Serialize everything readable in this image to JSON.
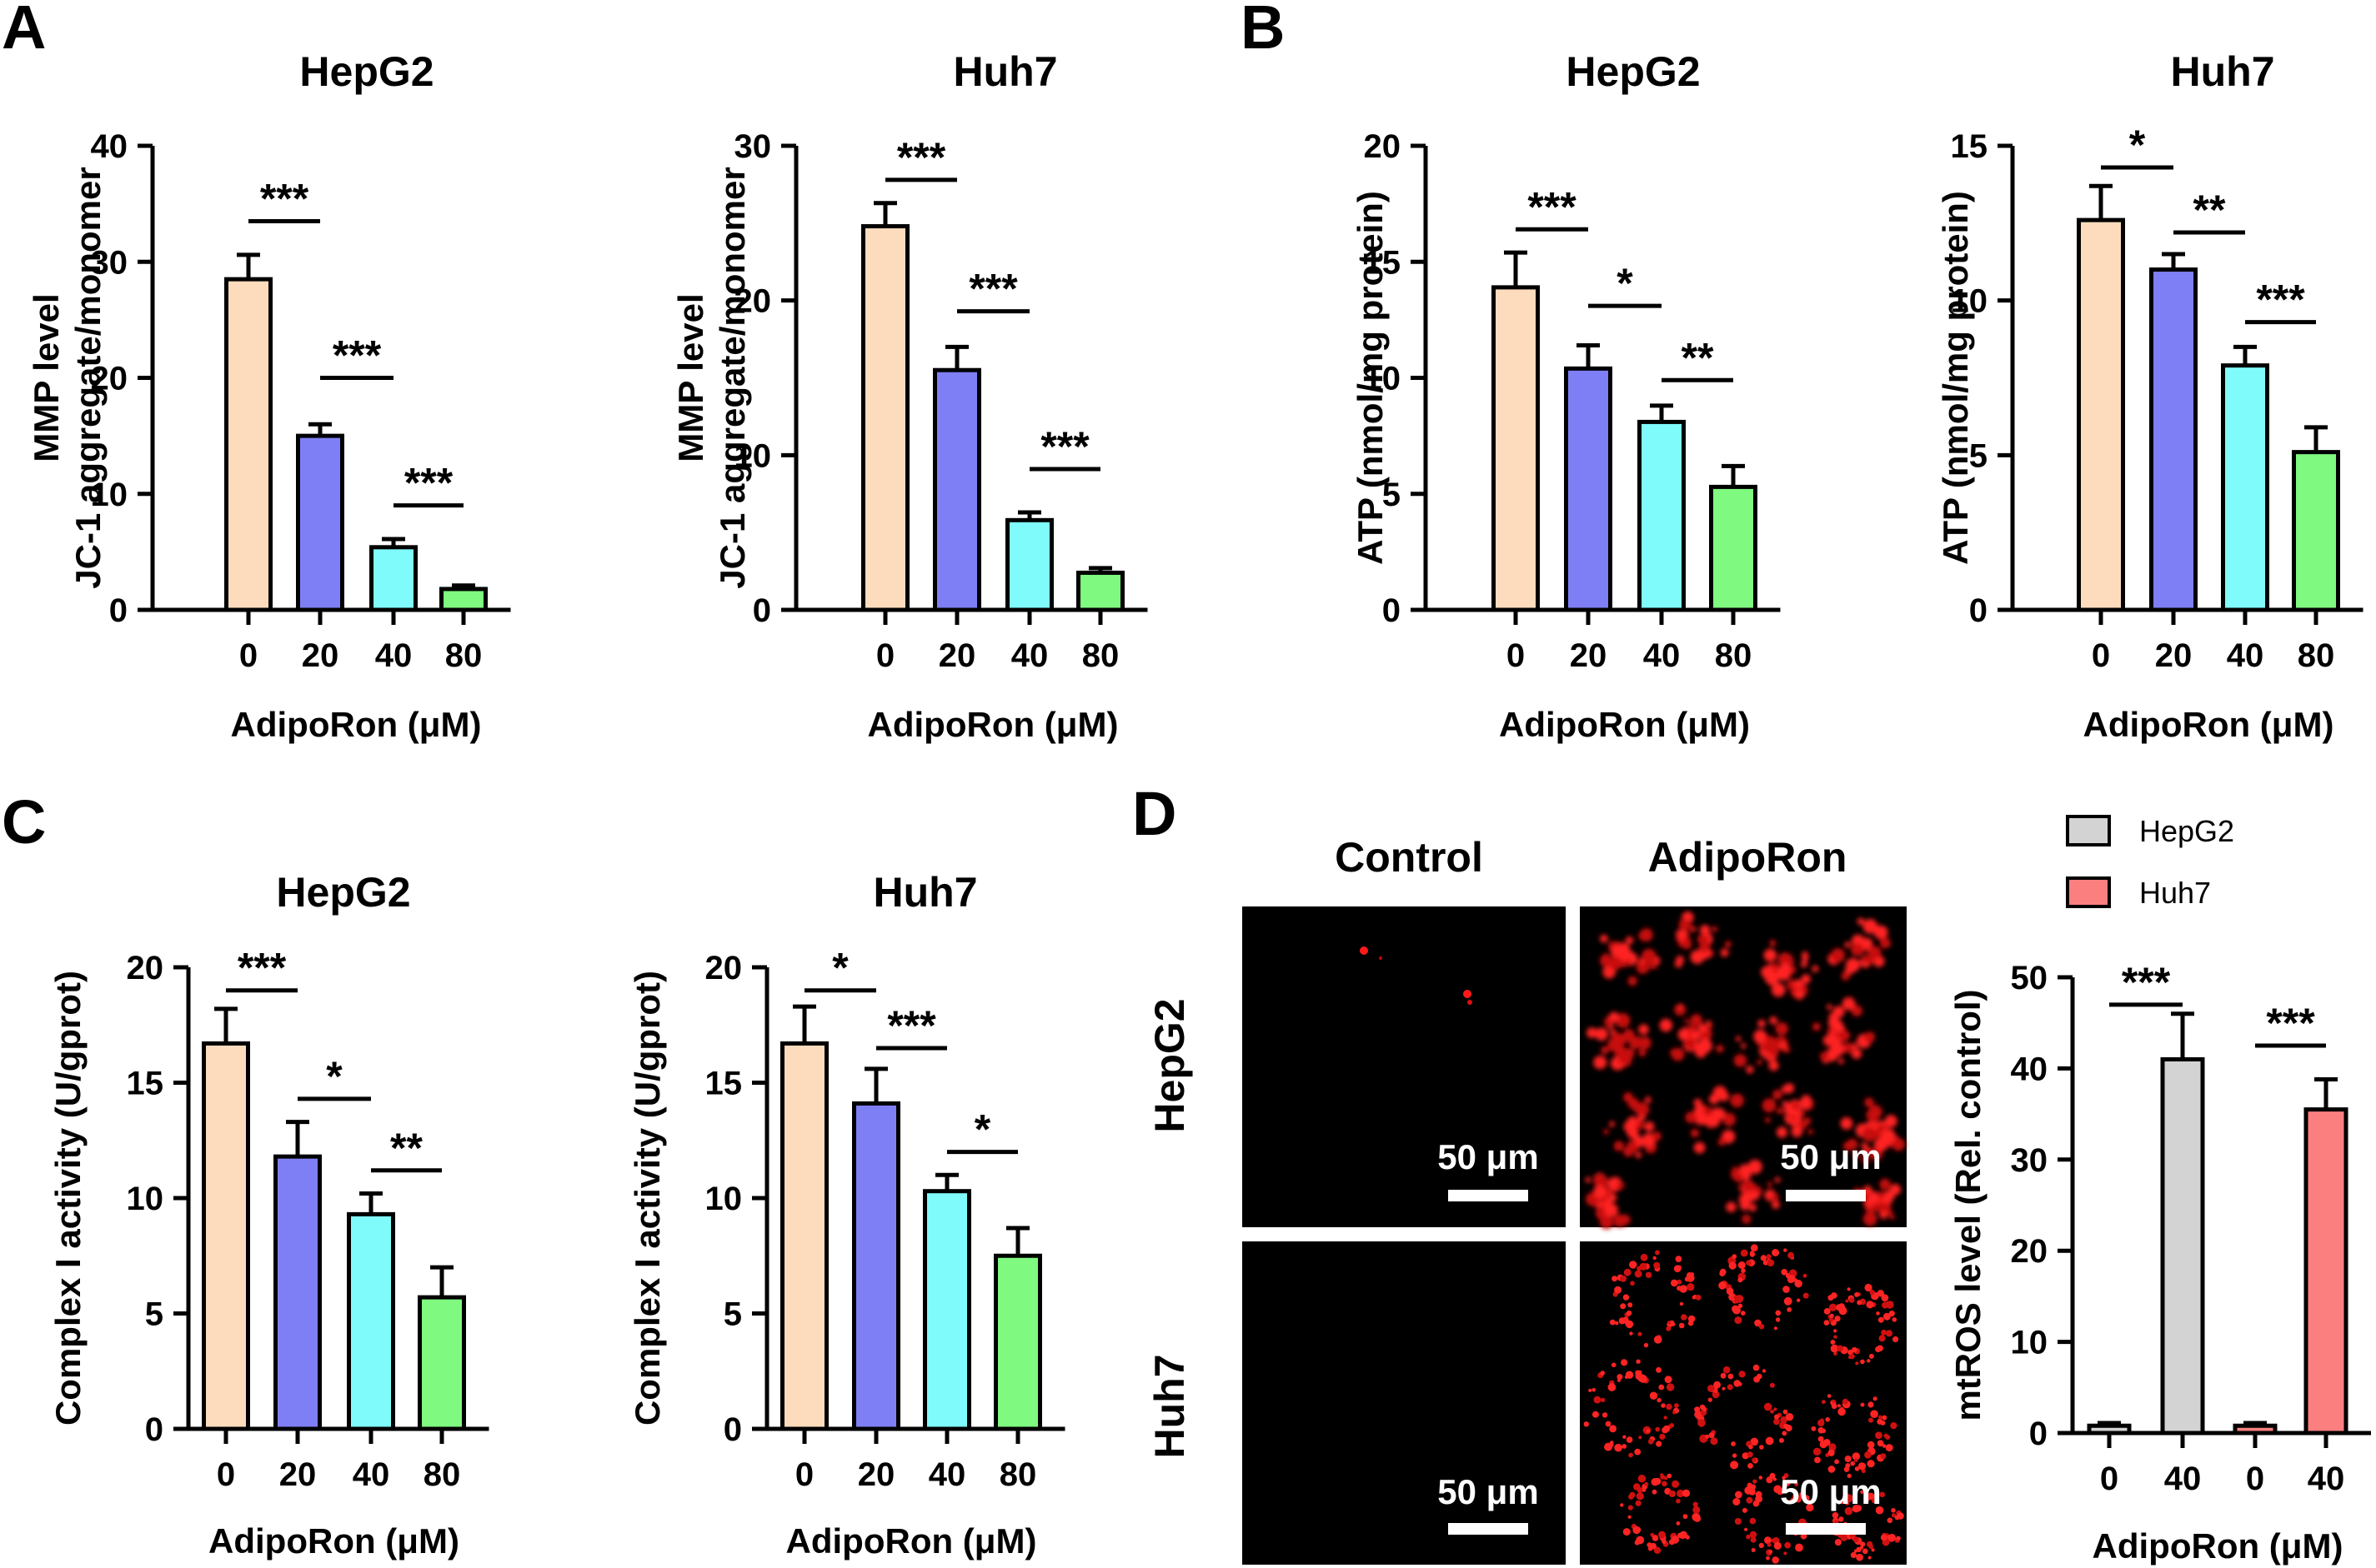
{
  "panels": {
    "A": "A",
    "B": "B",
    "C": "C",
    "D": "D"
  },
  "colors": {
    "c0": "#fcdcbd",
    "c20": "#7f7ff5",
    "c40": "#7ffbfb",
    "c80": "#7ff97f",
    "hepg2": "#d3d3d3",
    "huh7": "#fb7f7f",
    "stroke": "#000000"
  },
  "chart_data": [
    {
      "id": "A-HepG2",
      "type": "bar",
      "title": "HepG2",
      "ylabel": [
        "MMP level",
        "JC-1 aggregate/monomer"
      ],
      "xlabel": "AdipoRon (μM)",
      "categories": [
        "0",
        "20",
        "40",
        "80"
      ],
      "values": [
        28.5,
        15.0,
        5.4,
        1.8
      ],
      "errors": [
        2.1,
        1.0,
        0.7,
        0.3
      ],
      "ylim": [
        0,
        40
      ],
      "yticks": [
        "0",
        "10",
        "20",
        "30",
        "40"
      ],
      "sig": [
        {
          "from": 0,
          "to": 1,
          "y": 33.5,
          "label": "***"
        },
        {
          "from": 1,
          "to": 2,
          "y": 20,
          "label": "***"
        },
        {
          "from": 2,
          "to": 3,
          "y": 9,
          "label": "***"
        }
      ]
    },
    {
      "id": "A-Huh7",
      "type": "bar",
      "title": "Huh7",
      "ylabel": [
        "MMP level",
        "JC-1 aggregate/monomer"
      ],
      "xlabel": "AdipoRon (μM)",
      "categories": [
        "0",
        "20",
        "40",
        "80"
      ],
      "values": [
        24.8,
        15.5,
        5.8,
        2.4
      ],
      "errors": [
        1.5,
        1.5,
        0.5,
        0.3
      ],
      "ylim": [
        0,
        30
      ],
      "yticks": [
        "0",
        "10",
        "20",
        "30"
      ],
      "sig": [
        {
          "from": 0,
          "to": 1,
          "y": 27.8,
          "label": "***"
        },
        {
          "from": 1,
          "to": 2,
          "y": 19.3,
          "label": "***"
        },
        {
          "from": 2,
          "to": 3,
          "y": 9.1,
          "label": "***"
        }
      ]
    },
    {
      "id": "B-HepG2",
      "type": "bar",
      "title": "HepG2",
      "ylabel": [
        "ATP (nmol/mg protein)"
      ],
      "xlabel": "AdipoRon (μM)",
      "categories": [
        "0",
        "20",
        "40",
        "80"
      ],
      "values": [
        13.9,
        10.4,
        8.1,
        5.3
      ],
      "errors": [
        1.5,
        1.0,
        0.7,
        0.9
      ],
      "ylim": [
        0,
        20
      ],
      "yticks": [
        "0",
        "5",
        "10",
        "15",
        "20"
      ],
      "sig": [
        {
          "from": 0,
          "to": 1,
          "y": 16.4,
          "label": "***"
        },
        {
          "from": 1,
          "to": 2,
          "y": 13.1,
          "label": "*"
        },
        {
          "from": 2,
          "to": 3,
          "y": 9.9,
          "label": "**"
        }
      ]
    },
    {
      "id": "B-Huh7",
      "type": "bar",
      "title": "Huh7",
      "ylabel": [
        "ATP (nmol/mg protein)"
      ],
      "xlabel": "AdipoRon (μM)",
      "categories": [
        "0",
        "20",
        "40",
        "80"
      ],
      "values": [
        12.6,
        11.0,
        7.9,
        5.1
      ],
      "errors": [
        1.1,
        0.5,
        0.6,
        0.8
      ],
      "ylim": [
        0,
        15
      ],
      "yticks": [
        "0",
        "5",
        "10",
        "15"
      ],
      "sig": [
        {
          "from": 0,
          "to": 1,
          "y": 14.3,
          "label": "*"
        },
        {
          "from": 1,
          "to": 2,
          "y": 12.2,
          "label": "**"
        },
        {
          "from": 2,
          "to": 3,
          "y": 9.3,
          "label": "***"
        }
      ]
    },
    {
      "id": "C-HepG2",
      "type": "bar",
      "title": "HepG2",
      "ylabel": [
        "Complex I activity (U/gprot)"
      ],
      "xlabel": "AdipoRon (μM)",
      "categories": [
        "0",
        "20",
        "40",
        "80"
      ],
      "values": [
        16.7,
        11.8,
        9.3,
        5.7
      ],
      "errors": [
        1.5,
        1.5,
        0.9,
        1.3
      ],
      "ylim": [
        0,
        20
      ],
      "yticks": [
        "0",
        "5",
        "10",
        "15",
        "20"
      ],
      "sig": [
        {
          "from": 0,
          "to": 1,
          "y": 19.0,
          "label": "***"
        },
        {
          "from": 1,
          "to": 2,
          "y": 14.3,
          "label": "*"
        },
        {
          "from": 2,
          "to": 3,
          "y": 11.2,
          "label": "**"
        }
      ]
    },
    {
      "id": "C-Huh7",
      "type": "bar",
      "title": "Huh7",
      "ylabel": [
        "Complex I activity (U/gprot)"
      ],
      "xlabel": "AdipoRon (μM)",
      "categories": [
        "0",
        "20",
        "40",
        "80"
      ],
      "values": [
        16.7,
        14.1,
        10.3,
        7.5
      ],
      "errors": [
        1.6,
        1.5,
        0.7,
        1.2
      ],
      "ylim": [
        0,
        20
      ],
      "yticks": [
        "0",
        "5",
        "10",
        "15",
        "20"
      ],
      "sig": [
        {
          "from": 0,
          "to": 1,
          "y": 19.0,
          "label": "*"
        },
        {
          "from": 1,
          "to": 2,
          "y": 16.5,
          "label": "***"
        },
        {
          "from": 2,
          "to": 3,
          "y": 12.0,
          "label": "*"
        }
      ]
    },
    {
      "id": "D-mtROS",
      "type": "bar",
      "title": "",
      "ylabel": [
        "mtROS level (Rel. control)"
      ],
      "xlabel": "AdipoRon (μM)",
      "categories": [
        "0",
        "40",
        "0",
        "40"
      ],
      "values": [
        0.8,
        41.0,
        0.8,
        35.5
      ],
      "errors": [
        0.3,
        5.0,
        0.3,
        3.3
      ],
      "ylim": [
        0,
        50
      ],
      "yticks": [
        "0",
        "10",
        "20",
        "30",
        "40",
        "50"
      ],
      "series": [
        {
          "name": "HepG2",
          "bars": [
            0,
            1
          ]
        },
        {
          "name": "Huh7",
          "bars": [
            2,
            3
          ]
        }
      ],
      "legend": "top",
      "sig": [
        {
          "from": 0,
          "to": 1,
          "y": 47.0,
          "label": "***"
        },
        {
          "from": 2,
          "to": 3,
          "y": 42.5,
          "label": "***"
        }
      ]
    }
  ],
  "micrographs": {
    "columns": [
      "Control",
      "AdipoRon"
    ],
    "rows": [
      "HepG2",
      "Huh7"
    ],
    "scale_bar": "50 μm"
  }
}
